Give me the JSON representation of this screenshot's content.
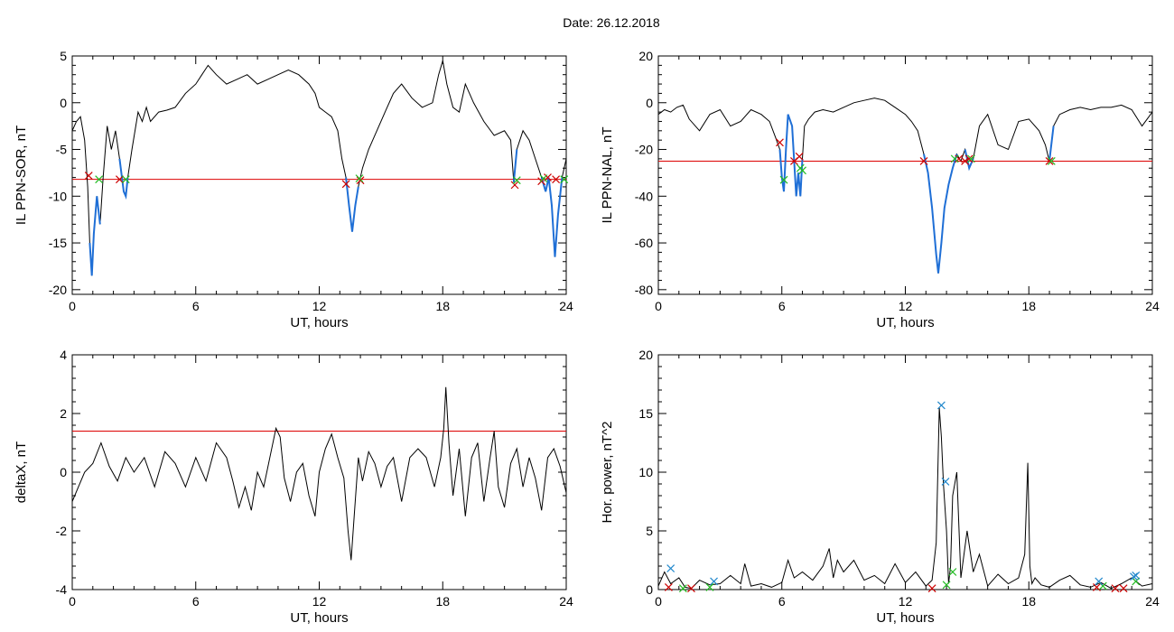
{
  "title": "Date:  26.12.2018",
  "colors": {
    "line": "#000000",
    "threshold": "#dd0000",
    "highlight": "#1f6fd6",
    "marker_red": "#cc0000",
    "marker_green": "#22bb22",
    "marker_blue": "#2288cc"
  },
  "chart_data": [
    {
      "type": "line",
      "xlabel": "UT, hours",
      "ylabel": "IL PPN-SOR, nT",
      "xlim": [
        0,
        24
      ],
      "ylim": [
        -20.5,
        5
      ],
      "xticks": [
        0,
        6,
        12,
        18,
        24
      ],
      "yticks": [
        -20,
        -15,
        -10,
        -5,
        0,
        5
      ],
      "threshold": -8.2,
      "series": [
        {
          "x": [
            0,
            0.2,
            0.4,
            0.6,
            0.75,
            0.85,
            0.95,
            1.05,
            1.2,
            1.35,
            1.5,
            1.7,
            1.9,
            2.1,
            2.3,
            2.5,
            2.6,
            2.7,
            2.9,
            3.2,
            3.4,
            3.6,
            3.8,
            4.2,
            4.6,
            5,
            5.5,
            6,
            6.3,
            6.6,
            7,
            7.5,
            8,
            8.5,
            9,
            9.5,
            10,
            10.5,
            11,
            11.5,
            11.8,
            12,
            12.3,
            12.6,
            12.9,
            13.1,
            13.3,
            13.45,
            13.6,
            13.75,
            13.9,
            14.1,
            14.4,
            14.8,
            15.2,
            15.6,
            16,
            16.5,
            17,
            17.5,
            17.8,
            18,
            18.2,
            18.5,
            18.8,
            19.1,
            19.5,
            20,
            20.5,
            21,
            21.3,
            21.45,
            21.6,
            21.9,
            22.2,
            22.5,
            22.8,
            23,
            23.15,
            23.3,
            23.45,
            23.6,
            23.8,
            24
          ],
          "y": [
            -3,
            -2,
            -1.5,
            -4,
            -9,
            -15,
            -18.5,
            -14,
            -10,
            -13,
            -8,
            -2.5,
            -5,
            -3,
            -6,
            -9.5,
            -10,
            -8,
            -5,
            -1,
            -2,
            -0.5,
            -2,
            -1,
            -0.8,
            -0.5,
            1,
            2,
            3,
            4,
            3,
            2,
            2.5,
            3,
            2,
            2.5,
            3,
            3.5,
            3,
            2,
            1,
            -0.5,
            -1,
            -1.5,
            -3,
            -6,
            -8,
            -11,
            -13.8,
            -11,
            -9,
            -7,
            -5,
            -3,
            -1,
            1,
            2,
            0.5,
            -0.5,
            0,
            3,
            4.5,
            2,
            -0.5,
            -1,
            2,
            0,
            -2,
            -3.5,
            -3,
            -4,
            -8.5,
            -5,
            -3,
            -4,
            -6,
            -8,
            -9.5,
            -8,
            -11,
            -16.5,
            -12,
            -8,
            -6
          ]
        }
      ],
      "markers_red": [
        [
          0.8,
          -7.8
        ],
        [
          2.3,
          -8.2
        ],
        [
          13.3,
          -8.7
        ],
        [
          14,
          -8.3
        ],
        [
          21.5,
          -8.8
        ],
        [
          22.8,
          -8.4
        ],
        [
          23.1,
          -8
        ],
        [
          23.5,
          -8.2
        ]
      ],
      "markers_green": [
        [
          1.3,
          -8.2
        ],
        [
          2.6,
          -8.2
        ],
        [
          13.95,
          -8.1
        ],
        [
          21.6,
          -8.3
        ],
        [
          22.9,
          -8.1
        ],
        [
          23.9,
          -8.2
        ]
      ],
      "highlight_ranges": [
        [
          0.8,
          1.4
        ],
        [
          2.3,
          2.7
        ],
        [
          13.3,
          14
        ],
        [
          21.4,
          21.6
        ],
        [
          22.8,
          23.9
        ]
      ]
    },
    {
      "type": "line",
      "xlabel": "UT, hours",
      "ylabel": "IL PPN-NAL, nT",
      "xlim": [
        0,
        24
      ],
      "ylim": [
        -82,
        20
      ],
      "xticks": [
        0,
        6,
        12,
        18,
        24
      ],
      "yticks": [
        -80,
        -60,
        -40,
        -20,
        0,
        20
      ],
      "threshold": -25,
      "series": [
        {
          "x": [
            0,
            0.3,
            0.6,
            0.9,
            1.2,
            1.5,
            2,
            2.5,
            3,
            3.5,
            4,
            4.5,
            5,
            5.4,
            5.7,
            5.9,
            6.0,
            6.1,
            6.2,
            6.3,
            6.5,
            6.7,
            6.8,
            6.9,
            7.0,
            7.1,
            7.3,
            7.6,
            8,
            8.5,
            9,
            9.5,
            10,
            10.5,
            11,
            11.5,
            12,
            12.3,
            12.6,
            12.9,
            13.1,
            13.3,
            13.5,
            13.6,
            13.75,
            13.9,
            14.1,
            14.3,
            14.5,
            14.7,
            14.9,
            15.1,
            15.3,
            15.6,
            16,
            16.5,
            17,
            17.5,
            18,
            18.5,
            18.8,
            19,
            19.2,
            19.5,
            20,
            20.5,
            21,
            21.5,
            22,
            22.5,
            23,
            23.5,
            24
          ],
          "y": [
            -5,
            -3,
            -4,
            -2,
            -1,
            -7,
            -12,
            -5,
            -3,
            -10,
            -8,
            -3,
            -5,
            -8,
            -15,
            -20,
            -32,
            -38,
            -20,
            -5,
            -10,
            -40,
            -30,
            -40,
            -24,
            -10,
            -7,
            -4,
            -3,
            -4,
            -2,
            0,
            1,
            2,
            1,
            -2,
            -5,
            -8,
            -12,
            -22,
            -30,
            -45,
            -65,
            -73,
            -60,
            -45,
            -35,
            -28,
            -22,
            -25,
            -20,
            -28,
            -24,
            -10,
            -5,
            -18,
            -20,
            -8,
            -7,
            -12,
            -18,
            -25,
            -10,
            -5,
            -3,
            -2,
            -3,
            -2,
            -2,
            -1,
            -3,
            -10,
            -4
          ]
        }
      ],
      "markers_red": [
        [
          5.9,
          -17
        ],
        [
          6.6,
          -25
        ],
        [
          6.85,
          -23
        ],
        [
          12.9,
          -25
        ],
        [
          14.6,
          -24
        ],
        [
          14.9,
          -25
        ],
        [
          15.1,
          -24
        ],
        [
          19.0,
          -25
        ]
      ],
      "markers_green": [
        [
          6.1,
          -33
        ],
        [
          6.9,
          -28
        ],
        [
          7.0,
          -29
        ],
        [
          14.4,
          -24
        ],
        [
          15.2,
          -24
        ],
        [
          19.1,
          -25
        ]
      ],
      "highlight_ranges": [
        [
          5.9,
          7.0
        ],
        [
          12.9,
          14.5
        ],
        [
          14.9,
          15.3
        ],
        [
          19.0,
          19.2
        ]
      ]
    },
    {
      "type": "line",
      "xlabel": "UT, hours",
      "ylabel": "deltaX, nT",
      "xlim": [
        0,
        24
      ],
      "ylim": [
        -4,
        4
      ],
      "xticks": [
        0,
        6,
        12,
        18,
        24
      ],
      "yticks": [
        -4,
        -2,
        0,
        2,
        4
      ],
      "threshold": 1.4,
      "series": [
        {
          "x": [
            0,
            0.3,
            0.6,
            1,
            1.4,
            1.8,
            2.2,
            2.6,
            3,
            3.5,
            4,
            4.5,
            5,
            5.5,
            6,
            6.5,
            7,
            7.5,
            7.8,
            8.1,
            8.4,
            8.7,
            9,
            9.3,
            9.6,
            9.9,
            10.1,
            10.3,
            10.6,
            10.9,
            11.2,
            11.5,
            11.8,
            12,
            12.3,
            12.6,
            12.9,
            13.2,
            13.4,
            13.55,
            13.7,
            13.9,
            14.1,
            14.4,
            14.7,
            15,
            15.3,
            15.6,
            16,
            16.4,
            16.8,
            17.2,
            17.6,
            17.9,
            18.05,
            18.15,
            18.3,
            18.5,
            18.8,
            19.1,
            19.4,
            19.7,
            20,
            20.3,
            20.5,
            20.7,
            21,
            21.3,
            21.6,
            21.9,
            22.2,
            22.5,
            22.8,
            23.1,
            23.4,
            23.7,
            24
          ],
          "y": [
            -1,
            -0.5,
            0,
            0.3,
            1,
            0.2,
            -0.3,
            0.5,
            0,
            0.5,
            -0.5,
            0.7,
            0.3,
            -0.5,
            0.5,
            -0.3,
            1,
            0.5,
            -0.3,
            -1.2,
            -0.5,
            -1.3,
            0,
            -0.5,
            0.5,
            1.5,
            1.2,
            -0.2,
            -1,
            0,
            0.3,
            -0.8,
            -1.5,
            0,
            0.8,
            1.3,
            0.5,
            -0.2,
            -2,
            -3,
            -1.5,
            0.5,
            -0.3,
            0.7,
            0.3,
            -0.5,
            0.2,
            0.5,
            -1,
            0.5,
            0.8,
            0.5,
            -0.5,
            0.5,
            1.5,
            2.9,
            1,
            -0.8,
            0.8,
            -1.5,
            0.5,
            1,
            -1,
            0.5,
            1.4,
            -0.5,
            -1.2,
            0.3,
            0.8,
            -0.5,
            0.5,
            -0.2,
            -1.3,
            0.5,
            0.8,
            0.2,
            -0.7
          ]
        }
      ],
      "markers_red": [],
      "markers_green": [],
      "highlight_ranges": []
    },
    {
      "type": "line",
      "xlabel": "UT, hours",
      "ylabel": "Hor. power, nT^2",
      "xlim": [
        0,
        24
      ],
      "ylim": [
        0,
        20
      ],
      "xticks": [
        0,
        6,
        12,
        18,
        24
      ],
      "yticks": [
        0,
        5,
        10,
        15,
        20
      ],
      "threshold": null,
      "series": [
        {
          "x": [
            0,
            0.3,
            0.6,
            1,
            1.3,
            1.6,
            2,
            2.5,
            3,
            3.5,
            4,
            4.2,
            4.5,
            5,
            5.5,
            6,
            6.3,
            6.6,
            7,
            7.5,
            8,
            8.3,
            8.5,
            8.7,
            9,
            9.5,
            10,
            10.5,
            11,
            11.5,
            12,
            12.5,
            13,
            13.3,
            13.5,
            13.65,
            13.75,
            13.85,
            14,
            14.1,
            14.2,
            14.3,
            14.5,
            14.7,
            15,
            15.3,
            15.6,
            16,
            16.5,
            17,
            17.5,
            17.8,
            17.95,
            18.05,
            18.15,
            18.3,
            18.6,
            19,
            19.5,
            20,
            20.5,
            21,
            21.5,
            22,
            22.5,
            23,
            23.5,
            24
          ],
          "y": [
            0.3,
            1.5,
            0.5,
            1,
            0.2,
            0.1,
            0.8,
            0.4,
            0.5,
            1.2,
            0.5,
            2.2,
            0.3,
            0.5,
            0.2,
            0.6,
            2.5,
            1,
            1.5,
            0.8,
            2,
            3.5,
            1,
            2.5,
            1.5,
            2.5,
            0.8,
            1.2,
            0.5,
            2.2,
            0.6,
            1.5,
            0.3,
            0.8,
            4,
            15.5,
            13,
            9,
            5,
            0.5,
            2,
            8,
            10,
            1,
            5,
            1.5,
            3,
            0.3,
            1.3,
            0.5,
            1,
            3,
            10.8,
            2,
            0.5,
            1,
            0.4,
            0.2,
            0.8,
            1.2,
            0.4,
            0.2,
            0.6,
            0.1,
            0.5,
            1,
            0.3,
            0.5
          ]
        }
      ],
      "markers_red": [
        [
          0.5,
          0.2
        ],
        [
          1.6,
          0.1
        ],
        [
          13.3,
          0.1
        ],
        [
          21.3,
          0.2
        ],
        [
          22.2,
          0.1
        ],
        [
          22.6,
          0.1
        ]
      ],
      "markers_green": [
        [
          1.2,
          0.1
        ],
        [
          2.5,
          0.2
        ],
        [
          14.0,
          0.4
        ],
        [
          14.3,
          1.5
        ],
        [
          21.6,
          0.3
        ],
        [
          23.2,
          0.7
        ]
      ],
      "markers_blue": [
        [
          0.6,
          1.8
        ],
        [
          2.7,
          0.7
        ],
        [
          13.75,
          15.7
        ],
        [
          13.95,
          9.2
        ],
        [
          21.4,
          0.7
        ],
        [
          23.1,
          1.1
        ],
        [
          23.2,
          1.2
        ]
      ],
      "highlight_ranges": []
    }
  ]
}
